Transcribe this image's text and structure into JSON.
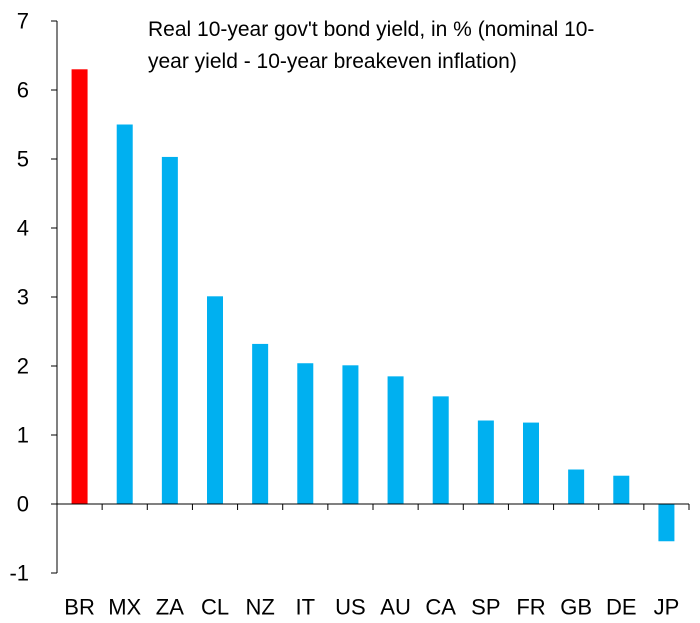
{
  "chart_data": {
    "type": "bar",
    "title_lines": [
      "Real 10-year gov't bond yield, in % (nominal 10-",
      "year yield - 10-year breakeven inflation)"
    ],
    "categories": [
      "BR",
      "MX",
      "ZA",
      "CL",
      "NZ",
      "IT",
      "US",
      "AU",
      "CA",
      "SP",
      "FR",
      "GB",
      "DE",
      "JP"
    ],
    "values": [
      6.3,
      5.5,
      5.03,
      3.01,
      2.32,
      2.04,
      2.01,
      1.85,
      1.56,
      1.21,
      1.18,
      0.5,
      0.41,
      -0.54
    ],
    "bar_colors": [
      "#ff0000",
      "#00b0f0",
      "#00b0f0",
      "#00b0f0",
      "#00b0f0",
      "#00b0f0",
      "#00b0f0",
      "#00b0f0",
      "#00b0f0",
      "#00b0f0",
      "#00b0f0",
      "#00b0f0",
      "#00b0f0",
      "#00b0f0"
    ],
    "ylim": [
      -1,
      7
    ],
    "yticks": [
      -1,
      0,
      1,
      2,
      3,
      4,
      5,
      6,
      7
    ],
    "grid": false,
    "legend": "none",
    "highlight_color": "#ff0000",
    "series_color": "#00b0f0"
  }
}
